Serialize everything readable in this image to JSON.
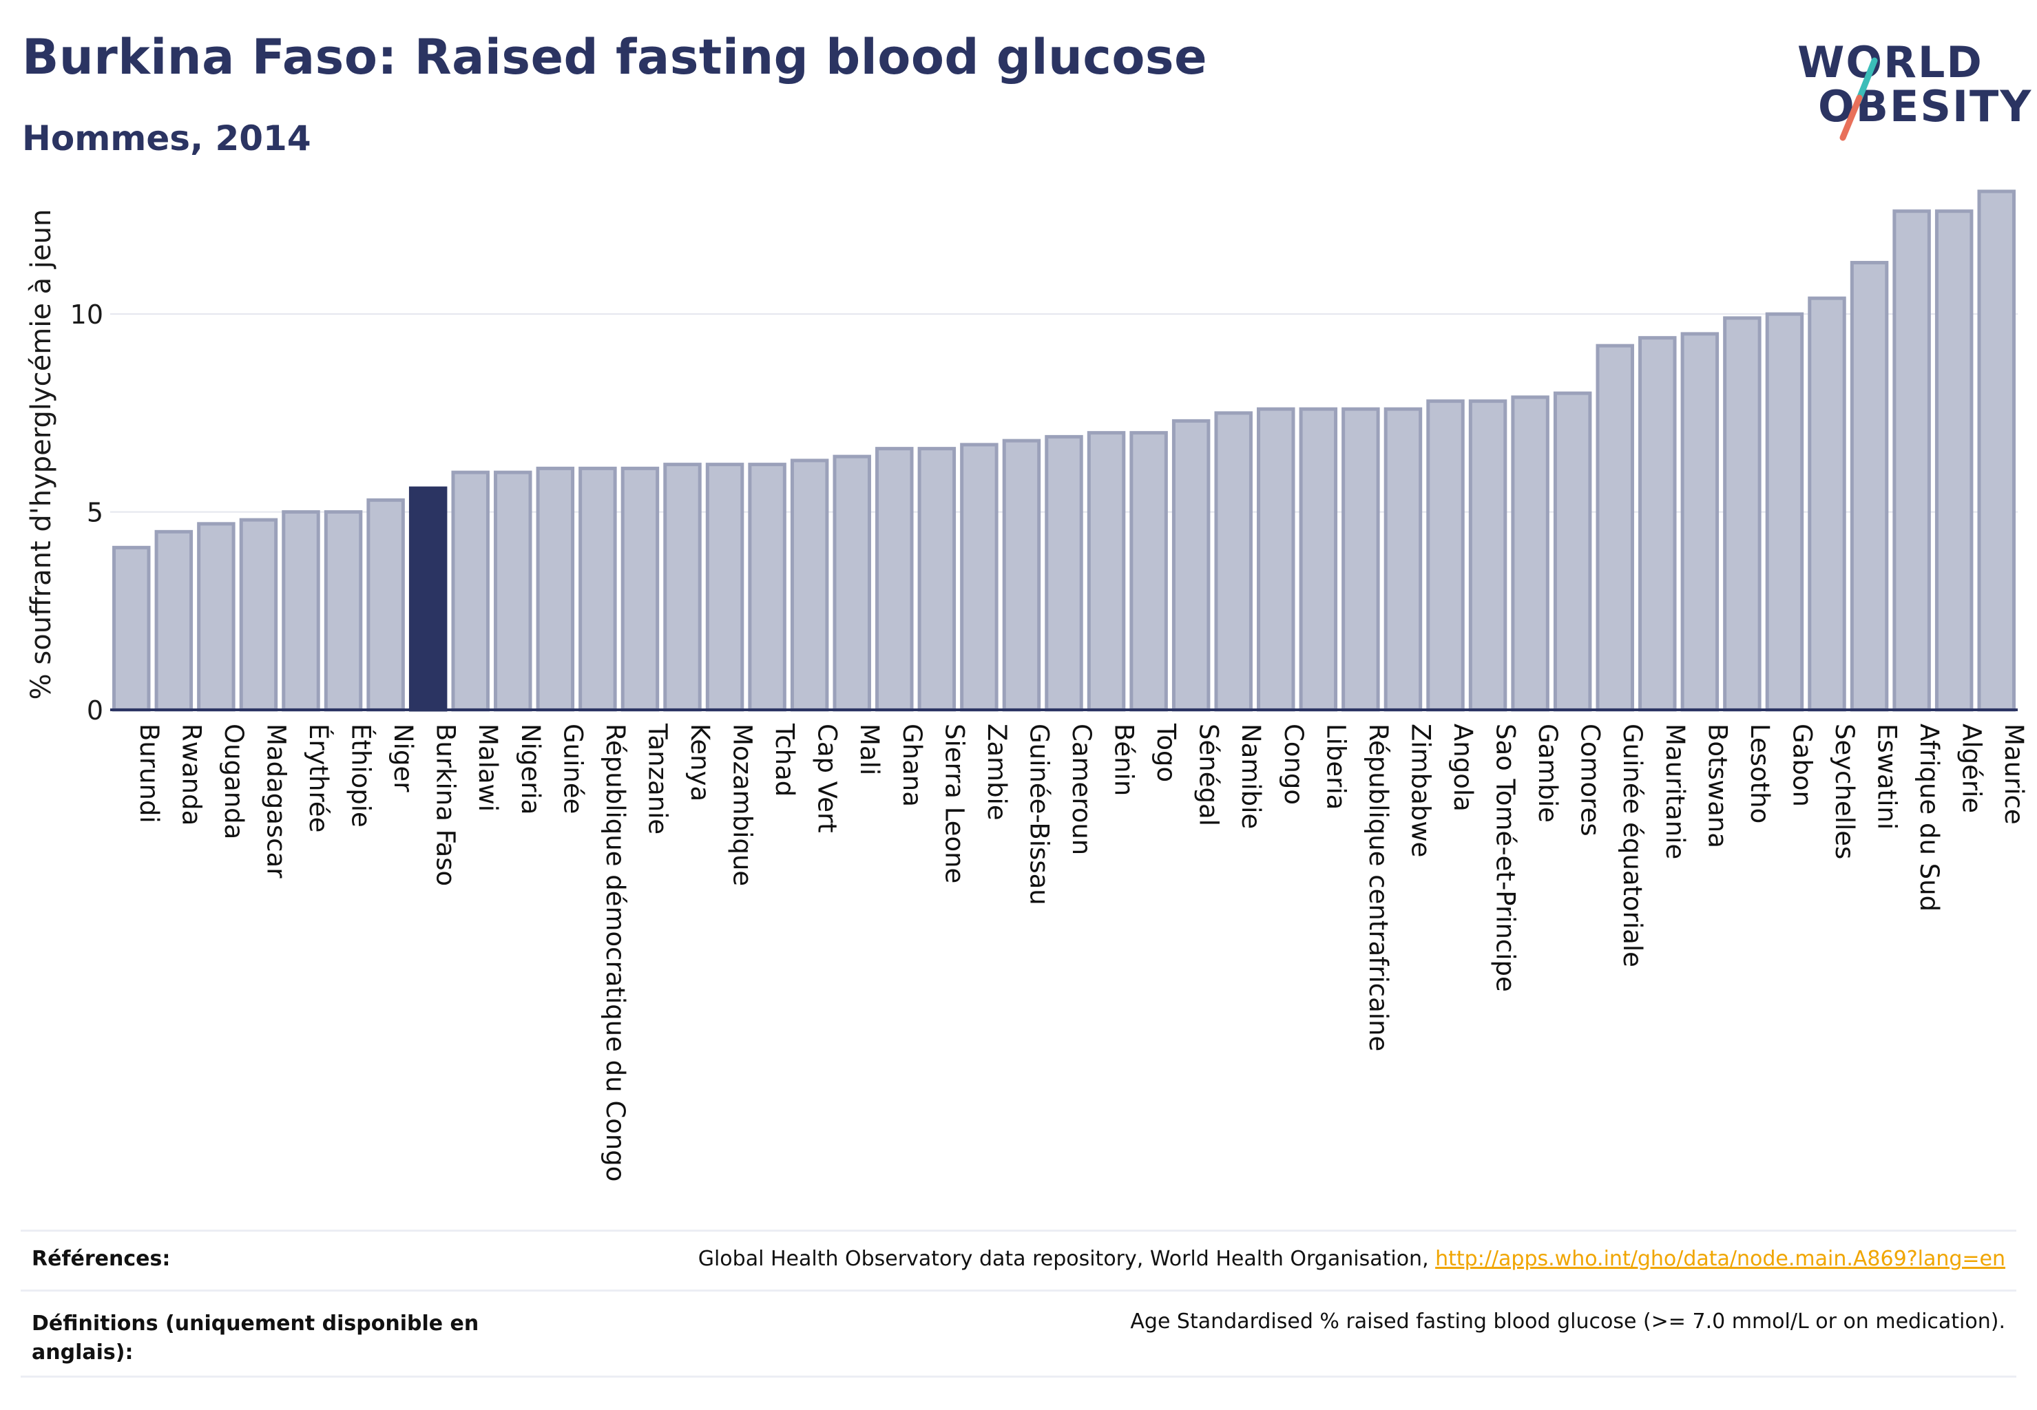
{
  "header": {
    "title": "Burkina Faso: Raised fasting blood glucose",
    "subtitle": "Hommes, 2014"
  },
  "logo": {
    "line1": "WORLD",
    "line2": "OBESITY",
    "colors": [
      "#2b3462",
      "#3bbdb8",
      "#e8705a"
    ]
  },
  "colors": {
    "bar": "#bcc1d2",
    "bar_border": "#9ba1ba",
    "highlight": "#2b3462",
    "axis": "#2b3462",
    "grid": "#e4e6ee"
  },
  "chart_data": {
    "type": "bar",
    "ylabel": "% souffrant d'hyperglycémie à jeun",
    "ylim": [
      0,
      13.5
    ],
    "yticks": [
      0,
      5,
      10
    ],
    "highlight": "Burkina Faso",
    "categories": [
      "Burundi",
      "Rwanda",
      "Ouganda",
      "Madagascar",
      "Érythrée",
      "Éthiopie",
      "Niger",
      "Burkina Faso",
      "Malawi",
      "Nigeria",
      "Guinée",
      "République démocratique du Congo",
      "Tanzanie",
      "Kenya",
      "Mozambique",
      "Tchad",
      "Cap Vert",
      "Mali",
      "Ghana",
      "Sierra Leone",
      "Zambie",
      "Guinée-Bissau",
      "Cameroun",
      "Bénin",
      "Togo",
      "Sénégal",
      "Namibie",
      "Congo",
      "Liberia",
      "République centrafricaine",
      "Zimbabwe",
      "Angola",
      "Sao Tomé-et-Principe",
      "Gambie",
      "Comores",
      "Guinée équatoriale",
      "Mauritanie",
      "Botswana",
      "Lesotho",
      "Gabon",
      "Seychelles",
      "Eswatini",
      "Afrique du Sud",
      "Algérie",
      "Maurice"
    ],
    "values": [
      4.1,
      4.5,
      4.7,
      4.8,
      5.0,
      5.0,
      5.3,
      5.6,
      6.0,
      6.0,
      6.1,
      6.1,
      6.1,
      6.2,
      6.2,
      6.2,
      6.3,
      6.4,
      6.6,
      6.6,
      6.7,
      6.8,
      6.9,
      7.0,
      7.0,
      7.3,
      7.5,
      7.6,
      7.6,
      7.6,
      7.6,
      7.8,
      7.8,
      7.9,
      8.0,
      9.2,
      9.4,
      9.5,
      9.9,
      10.0,
      10.4,
      11.3,
      12.6,
      12.6,
      13.1
    ]
  },
  "footer": {
    "references_label": "Références:",
    "references_text": "Global Health Observatory data repository, World Health Organisation, ",
    "references_link": "http://apps.who.int/gho/data/node.main.A869?lang=en",
    "definitions_label": "Définitions (uniquement disponible en anglais):",
    "definitions_text": "Age Standardised % raised fasting blood glucose (>= 7.0 mmol/L or on medication)."
  }
}
